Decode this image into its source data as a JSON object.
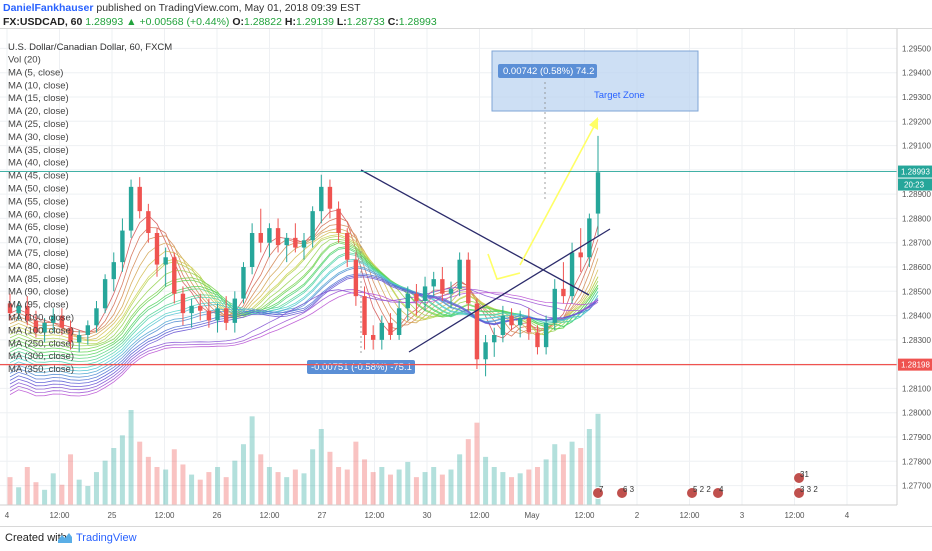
{
  "header": {
    "author": "DanielFankhauser",
    "published": "published on TradingView.com, May 01, 2018 09:39 EST",
    "symbol": "FX:USDCAD, 60",
    "last": "1.28993",
    "change": "+0.00568 (+0.44%)",
    "o_label": "O:",
    "o": "1.28822",
    "h_label": "H:",
    "h": "1.29139",
    "l_label": "L:",
    "l": "1.28733",
    "c_label": "C:",
    "c": "1.28993"
  },
  "legend": {
    "title": "U.S. Dollar/Canadian Dollar, 60, FXCM",
    "items": [
      "Vol (20)",
      "MA (5, close)",
      "MA (10, close)",
      "MA (15, close)",
      "MA (20, close)",
      "MA (25, close)",
      "MA (30, close)",
      "MA (35, close)",
      "MA (40, close)",
      "MA (45, close)",
      "MA (50, close)",
      "MA (55, close)",
      "MA (60, close)",
      "MA (65, close)",
      "MA (70, close)",
      "MA (75, close)",
      "MA (80, close)",
      "MA (85, close)",
      "MA (90, close)",
      "MA (95, close)",
      "MA (100, close)",
      "MA (100, close)",
      "MA (250, close)",
      "MA (300, close)",
      "MA (350, close)"
    ]
  },
  "annotations": {
    "measure_up": "0.00742 (0.58%) 74.2",
    "target_zone": "Target Zone",
    "measure_down": "-0.00751 (-0.58%) -75.1"
  },
  "price_tags": {
    "current": "1.28993",
    "countdown": "20:23",
    "support": "1.28198"
  },
  "events": [
    "7",
    "6 3",
    "5 2 2",
    "4",
    "31",
    "3 3 2"
  ],
  "footer": {
    "created": "Created with",
    "brand": "TradingView"
  },
  "colors": {
    "up": "#26a69a",
    "down": "#ef5350",
    "support": "#ef5350",
    "price_line": "#26a69a",
    "target": "#bcd4f0",
    "accent": "#2962ff",
    "trendline": "#2b2b6b",
    "projection": "#ffff66"
  },
  "chart_data": {
    "type": "candlestick",
    "y_ticks": [
      1.295,
      1.294,
      1.293,
      1.292,
      1.291,
      1.29,
      1.289,
      1.288,
      1.287,
      1.286,
      1.285,
      1.284,
      1.283,
      1.282,
      1.281,
      1.28,
      1.279,
      1.278,
      1.277
    ],
    "y_tick_labels": [
      "1.29500",
      "1.29400",
      "1.29300",
      "1.29200",
      "1.29100",
      "1.29000",
      "1.28900",
      "1.28800",
      "1.28700",
      "1.28600",
      "1.28500",
      "1.28400",
      "1.28300",
      "1.28200",
      "1.28100",
      "1.28000",
      "1.27900",
      "1.27800",
      "1.27700"
    ],
    "x_tick_labels": [
      "4",
      "12:00",
      "25",
      "12:00",
      "26",
      "12:00",
      "27",
      "12:00",
      "30",
      "12:00",
      "May",
      "12:00",
      "2",
      "12:00",
      "3",
      "12:00",
      "4"
    ],
    "ylim": [
      1.2762,
      1.2958
    ],
    "candles": [
      [
        1.2845,
        1.2849,
        1.2838,
        1.2841
      ],
      [
        1.2841,
        1.2846,
        1.2838,
        1.2844
      ],
      [
        1.2844,
        1.2848,
        1.2836,
        1.2838
      ],
      [
        1.2838,
        1.2842,
        1.2831,
        1.2833
      ],
      [
        1.2833,
        1.2839,
        1.2829,
        1.2837
      ],
      [
        1.2837,
        1.2843,
        1.2833,
        1.284
      ],
      [
        1.284,
        1.2843,
        1.2832,
        1.2835
      ],
      [
        1.2835,
        1.2838,
        1.2826,
        1.2829
      ],
      [
        1.2829,
        1.2834,
        1.2825,
        1.2832
      ],
      [
        1.2832,
        1.2838,
        1.2828,
        1.2836
      ],
      [
        1.2836,
        1.2846,
        1.2833,
        1.2843
      ],
      [
        1.2843,
        1.2857,
        1.2841,
        1.2855
      ],
      [
        1.2855,
        1.2866,
        1.285,
        1.2862
      ],
      [
        1.2862,
        1.288,
        1.2858,
        1.2875
      ],
      [
        1.2875,
        1.2896,
        1.2872,
        1.2893
      ],
      [
        1.2893,
        1.2897,
        1.288,
        1.2883
      ],
      [
        1.2883,
        1.2886,
        1.287,
        1.2874
      ],
      [
        1.2874,
        1.2876,
        1.2856,
        1.2861
      ],
      [
        1.2861,
        1.2868,
        1.2852,
        1.2864
      ],
      [
        1.2864,
        1.2866,
        1.2845,
        1.2849
      ],
      [
        1.2849,
        1.2852,
        1.2836,
        1.2841
      ],
      [
        1.2841,
        1.2847,
        1.2835,
        1.2844
      ],
      [
        1.2844,
        1.2849,
        1.2838,
        1.2842
      ],
      [
        1.2842,
        1.2847,
        1.2835,
        1.2838
      ],
      [
        1.2838,
        1.2845,
        1.2833,
        1.2843
      ],
      [
        1.2843,
        1.2848,
        1.2834,
        1.2837
      ],
      [
        1.2837,
        1.285,
        1.2833,
        1.2847
      ],
      [
        1.2847,
        1.2862,
        1.2845,
        1.286
      ],
      [
        1.286,
        1.2878,
        1.2857,
        1.2874
      ],
      [
        1.2874,
        1.2884,
        1.2866,
        1.287
      ],
      [
        1.287,
        1.2878,
        1.2864,
        1.2876
      ],
      [
        1.2876,
        1.288,
        1.2866,
        1.2869
      ],
      [
        1.2869,
        1.2874,
        1.2862,
        1.2872
      ],
      [
        1.2872,
        1.2878,
        1.2866,
        1.2868
      ],
      [
        1.2868,
        1.2874,
        1.2863,
        1.2871
      ],
      [
        1.2871,
        1.2885,
        1.2868,
        1.2883
      ],
      [
        1.2883,
        1.2898,
        1.2878,
        1.2893
      ],
      [
        1.2893,
        1.2896,
        1.288,
        1.2884
      ],
      [
        1.2884,
        1.2887,
        1.287,
        1.2874
      ],
      [
        1.2874,
        1.2876,
        1.286,
        1.2863
      ],
      [
        1.2863,
        1.2866,
        1.2844,
        1.2848
      ],
      [
        1.2848,
        1.2852,
        1.2826,
        1.2832
      ],
      [
        1.2832,
        1.2836,
        1.2826,
        1.283
      ],
      [
        1.283,
        1.284,
        1.2826,
        1.2837
      ],
      [
        1.2837,
        1.2841,
        1.283,
        1.2832
      ],
      [
        1.2832,
        1.2846,
        1.283,
        1.2843
      ],
      [
        1.2843,
        1.2852,
        1.2838,
        1.2849
      ],
      [
        1.2849,
        1.2853,
        1.284,
        1.2846
      ],
      [
        1.2846,
        1.2856,
        1.2842,
        1.2852
      ],
      [
        1.2852,
        1.2858,
        1.2848,
        1.2855
      ],
      [
        1.2855,
        1.286,
        1.2846,
        1.2849
      ],
      [
        1.2849,
        1.2854,
        1.2843,
        1.2851
      ],
      [
        1.2851,
        1.2866,
        1.2848,
        1.2863
      ],
      [
        1.2863,
        1.2866,
        1.2842,
        1.2845
      ],
      [
        1.2845,
        1.2847,
        1.2818,
        1.2822
      ],
      [
        1.2822,
        1.2832,
        1.2815,
        1.2829
      ],
      [
        1.2829,
        1.2835,
        1.2823,
        1.2832
      ],
      [
        1.2832,
        1.2844,
        1.2829,
        1.284
      ],
      [
        1.284,
        1.2843,
        1.2834,
        1.2836
      ],
      [
        1.2836,
        1.2842,
        1.2831,
        1.2839
      ],
      [
        1.2839,
        1.2843,
        1.283,
        1.2833
      ],
      [
        1.2833,
        1.2836,
        1.2824,
        1.2827
      ],
      [
        1.2827,
        1.284,
        1.2824,
        1.2837
      ],
      [
        1.2837,
        1.2855,
        1.2834,
        1.2851
      ],
      [
        1.2851,
        1.2862,
        1.2845,
        1.2848
      ],
      [
        1.2848,
        1.287,
        1.2845,
        1.2866
      ],
      [
        1.2866,
        1.2876,
        1.2858,
        1.2864
      ],
      [
        1.2864,
        1.2882,
        1.286,
        1.288
      ],
      [
        1.2882,
        1.2914,
        1.2873,
        1.2899
      ]
    ],
    "volume": [
      22,
      14,
      30,
      18,
      12,
      25,
      16,
      40,
      20,
      15,
      26,
      35,
      45,
      55,
      75,
      50,
      38,
      30,
      28,
      44,
      32,
      24,
      20,
      26,
      30,
      22,
      35,
      48,
      70,
      40,
      30,
      26,
      22,
      28,
      25,
      44,
      60,
      42,
      30,
      28,
      50,
      36,
      26,
      30,
      24,
      28,
      34,
      22,
      26,
      30,
      24,
      28,
      40,
      52,
      65,
      38,
      30,
      26,
      22,
      25,
      28,
      30,
      36,
      48,
      40,
      50,
      45,
      60,
      72
    ],
    "ma_periods": [
      5,
      10,
      15,
      20,
      25,
      30,
      35,
      40,
      45,
      50,
      55,
      60,
      65,
      70,
      75,
      80,
      85,
      90,
      95,
      100,
      100,
      250,
      300,
      350
    ],
    "support_level": 1.28198,
    "target_zone": {
      "from": 1.2925,
      "to": 1.2948
    },
    "measure_up": {
      "value": 0.00742,
      "percent": 0.58,
      "pips": 74.2
    },
    "measure_down": {
      "value": -0.00751,
      "percent": -0.58,
      "pips": -75.1
    },
    "triangle": {
      "upper": [
        1.29,
        1.2849
      ],
      "lower": [
        1.2826,
        1.2849
      ]
    }
  }
}
